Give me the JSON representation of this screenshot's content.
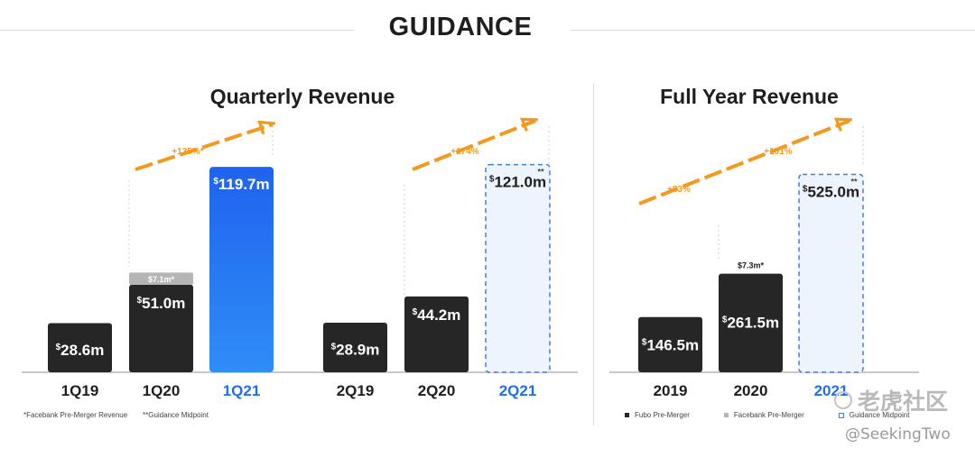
{
  "header": {
    "title": "GUIDANCE"
  },
  "colors": {
    "actual": "#262626",
    "premerger": "#b5b5b5",
    "q1_highlight": "#1f6ef0",
    "guidance_fill": "#eef4fe",
    "guidance_border": "#3f7fe6",
    "arrow": "#f39a1e",
    "cat_highlight": "#1f6ef0"
  },
  "chart_data": [
    {
      "type": "bar",
      "title": "Quarterly Revenue",
      "stacked": true,
      "categories": [
        "1Q19",
        "1Q20",
        "1Q21",
        "2Q19",
        "2Q20",
        "2Q21"
      ],
      "series": [
        {
          "name": "Fubo Pre-Merger",
          "values": [
            28.6,
            51.0,
            119.7,
            28.9,
            44.2,
            121.0
          ],
          "labels": [
            "$28.6m",
            "$51.0m",
            "$119.7m",
            "$28.9m",
            "$44.2m",
            "$121.0m"
          ]
        },
        {
          "name": "Facebank Pre-Merger Revenue",
          "values": [
            0,
            7.1,
            0,
            0,
            0,
            0
          ],
          "labels": [
            "",
            "$7.1m*",
            "",
            "",
            "",
            ""
          ]
        }
      ],
      "styles": [
        "actual",
        "actual",
        "highlight",
        "actual",
        "actual",
        "guidance"
      ],
      "guidance_markers": [
        "",
        "",
        "",
        "",
        "",
        "**"
      ],
      "growth_annotations": [
        {
          "label": "+135%*",
          "from": "1Q20",
          "to": "1Q21"
        },
        {
          "label": "+174%",
          "from": "2Q20",
          "to": "2Q21"
        }
      ],
      "unit": "$m",
      "ylim": [
        0,
        125
      ]
    },
    {
      "type": "bar",
      "title": "Full Year Revenue",
      "stacked": true,
      "categories": [
        "2019",
        "2020",
        "2021"
      ],
      "series": [
        {
          "name": "Fubo Pre-Merger",
          "values": [
            146.5,
            261.5,
            525.0
          ],
          "labels": [
            "$146.5m",
            "$261.5m",
            "$525.0m"
          ]
        },
        {
          "name": "Facebank Pre-Merger",
          "values": [
            0,
            7.3,
            0
          ],
          "labels": [
            "",
            "$7.3m*",
            ""
          ]
        }
      ],
      "styles": [
        "actual",
        "actual",
        "guidance"
      ],
      "guidance_markers": [
        "",
        "",
        "**"
      ],
      "growth_annotations": [
        {
          "label": "+83%",
          "from": "2019",
          "to": "2020"
        },
        {
          "label": "+101%",
          "from": "2020",
          "to": "2021"
        }
      ],
      "unit": "$m",
      "ylim": [
        0,
        550
      ]
    }
  ],
  "footnotes": {
    "left_1": "*Facebank Pre-Merger Revenue",
    "left_2": "**Guidance Midpoint"
  },
  "legend": [
    {
      "label": "Fubo Pre-Merger",
      "kind": "actual"
    },
    {
      "label": "Facebank Pre-Merger",
      "kind": "premerger"
    },
    {
      "label": "Guidance Midpoint",
      "kind": "guidance"
    }
  ],
  "watermark": {
    "cn": "老虎社区",
    "handle": "@SeekingTwo"
  }
}
